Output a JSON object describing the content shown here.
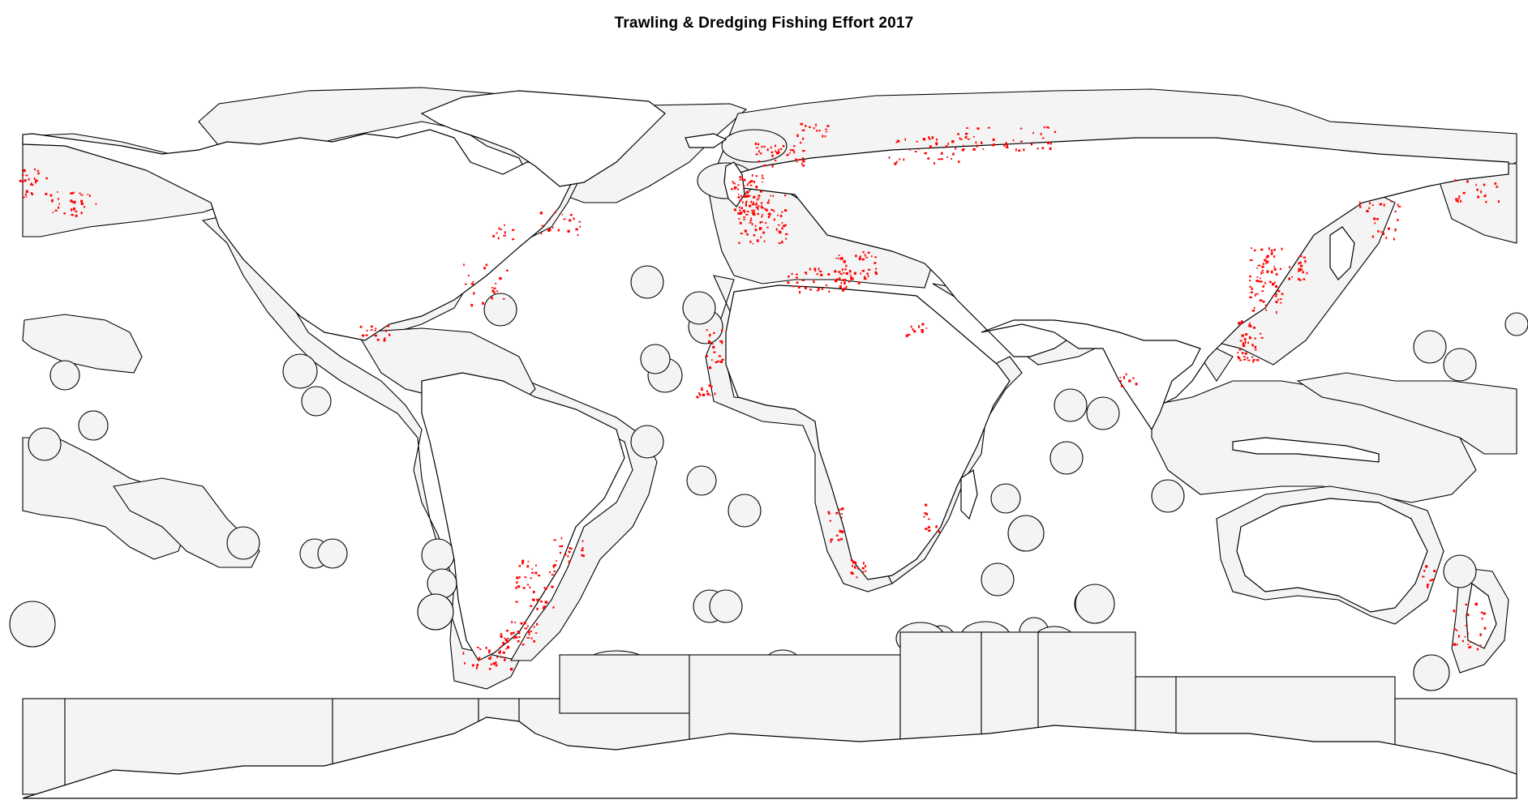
{
  "title": "Trawling & Dredging Fishing Effort 2017",
  "colors": {
    "effort": "#ff0000",
    "eez_fill": "#f4f4f4",
    "land_fill": "#ffffff",
    "outline": "#000000"
  },
  "legend": null
}
